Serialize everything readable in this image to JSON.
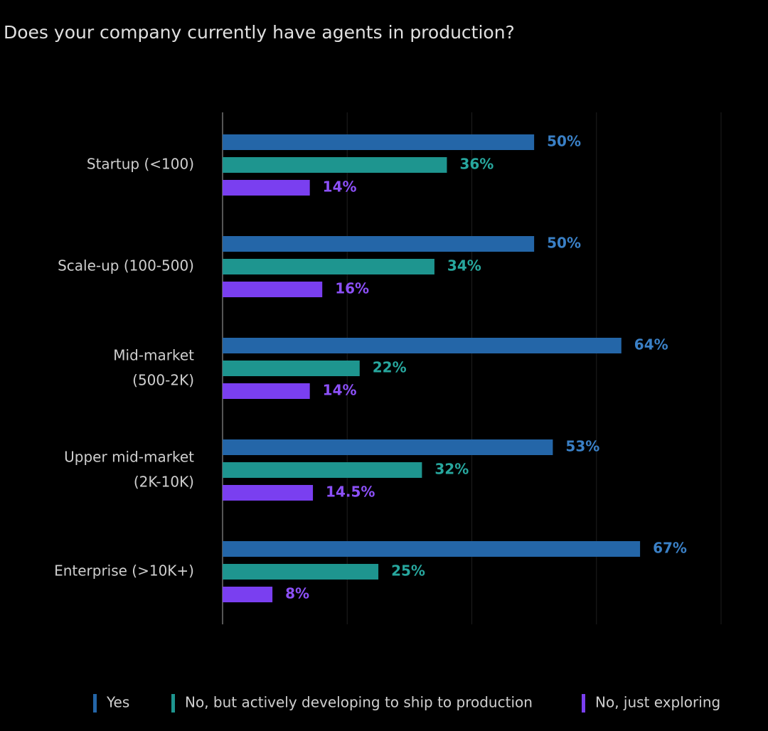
{
  "chart_data": {
    "type": "bar",
    "orientation": "horizontal",
    "title": "Does your company currently have agents in production?",
    "categories": [
      "Startup (<100)",
      "Scale-up (100-500)",
      [
        "Mid-market",
        "(500-2K)"
      ],
      [
        "Upper mid-market",
        "(2K-10K)"
      ],
      "Enterprise (>10K+)"
    ],
    "series": [
      {
        "name": "Yes",
        "color": "#2466a8",
        "label_color": "#3a80c6",
        "values": [
          50,
          50,
          64,
          53,
          67
        ],
        "value_labels": [
          "50%",
          "50%",
          "64%",
          "53%",
          "67%"
        ]
      },
      {
        "name": "No, but actively developing to ship to production",
        "color": "#1e958f",
        "label_color": "#27a79e",
        "values": [
          36,
          34,
          22,
          32,
          25
        ],
        "value_labels": [
          "36%",
          "34%",
          "22%",
          "32%",
          "25%"
        ]
      },
      {
        "name": "No, just exploring",
        "color": "#7a3ff0",
        "label_color": "#8c50f8",
        "values": [
          14,
          16,
          14,
          14.5,
          8
        ],
        "value_labels": [
          "14%",
          "16%",
          "14%",
          "14.5%",
          "8%"
        ]
      }
    ],
    "xlim": [
      0,
      80
    ],
    "xticks": [
      0,
      20,
      40,
      60,
      80
    ],
    "grid": true,
    "legend": "bottom"
  }
}
